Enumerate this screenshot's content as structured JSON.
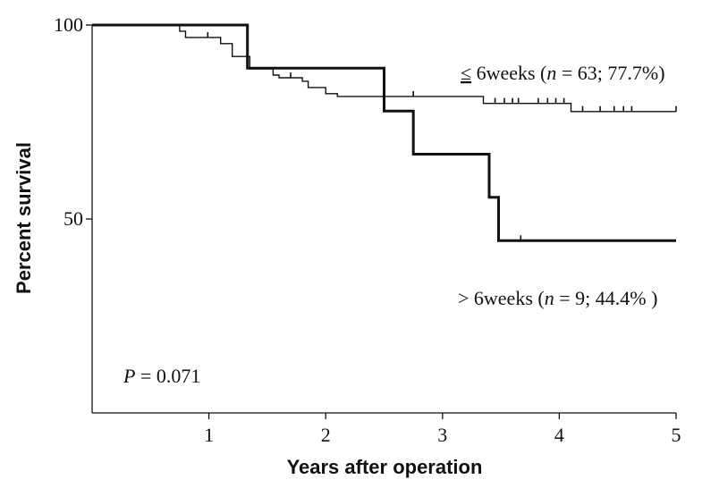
{
  "chart_data": {
    "type": "line",
    "xlabel": "Years after operation",
    "ylabel": "Percent survival",
    "xlim": [
      0,
      5
    ],
    "ylim": [
      0,
      100
    ],
    "x_ticks": [
      "1",
      "2",
      "3",
      "4",
      "5"
    ],
    "y_ticks": [
      "50",
      "100"
    ],
    "y_tick_values": [
      50,
      100
    ],
    "grid": false,
    "series": [
      {
        "name": "≤ 6weeks (n = 63; 77.7%)",
        "style": "thin",
        "steps": [
          [
            0,
            100
          ],
          [
            0.75,
            100
          ],
          [
            0.75,
            98.4
          ],
          [
            0.8,
            98.4
          ],
          [
            0.8,
            96.8
          ],
          [
            1.1,
            96.8
          ],
          [
            1.1,
            95.2
          ],
          [
            1.2,
            95.2
          ],
          [
            1.2,
            91.9
          ],
          [
            1.35,
            91.9
          ],
          [
            1.35,
            88.7
          ],
          [
            1.55,
            88.7
          ],
          [
            1.55,
            87.1
          ],
          [
            1.6,
            87.1
          ],
          [
            1.6,
            86.4
          ],
          [
            1.8,
            86.4
          ],
          [
            1.8,
            85.5
          ],
          [
            1.85,
            85.5
          ],
          [
            1.85,
            83.9
          ],
          [
            2.0,
            83.9
          ],
          [
            2.0,
            82.3
          ],
          [
            2.1,
            82.3
          ],
          [
            2.1,
            81.6
          ],
          [
            3.35,
            81.6
          ],
          [
            3.35,
            79.8
          ],
          [
            4.1,
            79.8
          ],
          [
            4.1,
            77.7
          ],
          [
            5.0,
            77.7
          ]
        ],
        "censor_x": [
          0.99,
          1.7,
          2.75,
          3.45,
          3.53,
          3.6,
          3.65,
          3.82,
          3.9,
          3.97,
          4.04,
          4.2,
          4.35,
          4.47,
          4.55,
          4.62,
          5.0
        ]
      },
      {
        "name": "> 6weeks (n = 9; 44.4% )",
        "style": "thick",
        "steps": [
          [
            0,
            100
          ],
          [
            1.33,
            100
          ],
          [
            1.33,
            88.9
          ],
          [
            2.5,
            88.9
          ],
          [
            2.5,
            77.8
          ],
          [
            2.75,
            77.8
          ],
          [
            2.75,
            66.7
          ],
          [
            3.4,
            66.7
          ],
          [
            3.4,
            55.6
          ],
          [
            3.48,
            55.6
          ],
          [
            3.48,
            44.4
          ],
          [
            5.0,
            44.4
          ]
        ],
        "censor_x": [
          3.67
        ]
      }
    ],
    "annotations": {
      "upper_series_label": "≤ 6weeks (n = 63; 77.7%)",
      "lower_series_label": "> 6weeks (n = 9; 44.4% )",
      "p_value_label": "P = 0.071"
    }
  },
  "labels": {
    "upper_prefix": "≤",
    "upper_text": " 6weeks (",
    "upper_n": "n",
    "upper_rest": " = 63; 77.7%)",
    "lower_text": "> 6weeks (",
    "lower_n": "n",
    "lower_rest": " = 9; 44.4% )",
    "p_letter": "P",
    "p_rest": " = 0.071"
  }
}
